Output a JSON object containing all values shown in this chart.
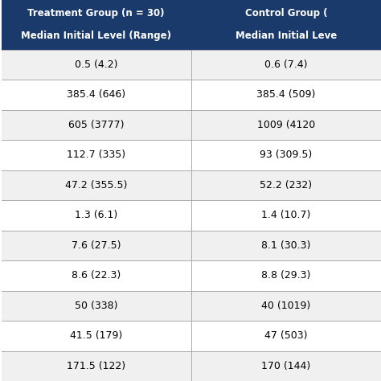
{
  "header_bg_color": "#1a3a6b",
  "header_text_color": "#ffffff",
  "row_bg_color_odd": "#f0f0f0",
  "row_bg_color_even": "#ffffff",
  "line_color": "#aaaaaa",
  "header_row1": [
    "Treatment Group (n = 30)",
    "Control Group ("
  ],
  "header_row2": [
    "Median Initial Level (Range)",
    "Median Initial Leve"
  ],
  "col1_values": [
    "0.5 (4.2)",
    "385.4 (646)",
    "605 (3777)",
    "112.7 (335)",
    "47.2 (355.5)",
    "1.3 (6.1)",
    "7.6 (27.5)",
    "8.6 (22.3)",
    "50 (338)",
    "41.5 (179)",
    "171.5 (122)"
  ],
  "col2_values": [
    "0.6 (7.4)",
    "385.4 (509)",
    "1009 (4120",
    "93 (309.5)",
    "52.2 (232)",
    "1.4 (10.7)",
    "8.1 (30.3)",
    "8.8 (29.3)",
    "40 (1019)",
    "47 (503)",
    "170 (144)"
  ],
  "figsize": [
    4.74,
    4.74
  ],
  "dpi": 100
}
